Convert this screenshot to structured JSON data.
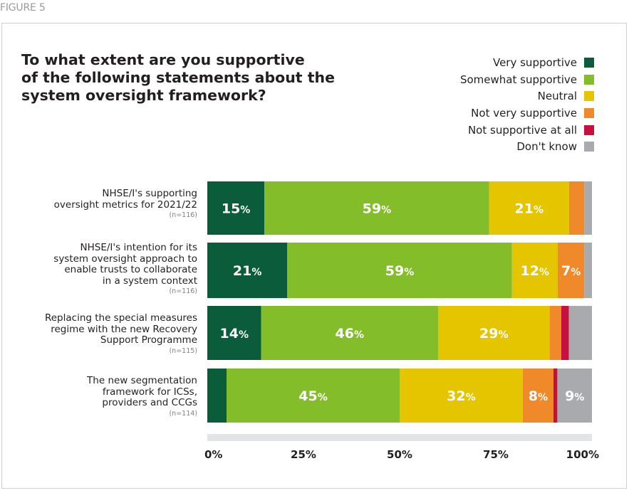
{
  "figure_label": "FIGURE 5",
  "chart_data": {
    "type": "bar",
    "orientation": "horizontal",
    "stacked": true,
    "title": "To what extent are you supportive of the following statements about the system oversight framework?",
    "title_lines": [
      "To what extent are you supportive",
      "of the following statements about the",
      "system oversight framework?"
    ],
    "legend_position": "top-right",
    "xlim": [
      0,
      100
    ],
    "x_ticks": [
      "0%",
      "25%",
      "50%",
      "75%",
      "100%"
    ],
    "series": [
      {
        "name": "Very supportive",
        "color": "#0a5c3a"
      },
      {
        "name": "Somewhat supportive",
        "color": "#84bd2a"
      },
      {
        "name": "Neutral",
        "color": "#e5c400"
      },
      {
        "name": "Not very supportive",
        "color": "#f0892a"
      },
      {
        "name": "Not supportive at all",
        "color": "#c8103e"
      },
      {
        "name": "Don't know",
        "color": "#a8aaad"
      }
    ],
    "categories": [
      {
        "lines": [
          "NHSE/I's supporting",
          "oversight metrics for 2021/22"
        ],
        "n": "(n=116)",
        "values": [
          15,
          59,
          21,
          4,
          0,
          2
        ],
        "labels": [
          "15%",
          "59%",
          "21%",
          "",
          "",
          ""
        ]
      },
      {
        "lines": [
          "NHSE/I's intention for its",
          "system oversight approach to",
          "enable trusts to collaborate",
          "in a system context"
        ],
        "n": "(n=116)",
        "values": [
          21,
          59,
          12,
          7,
          0,
          2
        ],
        "labels": [
          "21%",
          "59%",
          "12%",
          "7%",
          "",
          ""
        ]
      },
      {
        "lines": [
          "Replacing the special measures",
          "regime with the new Recovery",
          "Support Programme"
        ],
        "n": "(n=115)",
        "values": [
          14,
          46,
          29,
          3,
          2,
          6
        ],
        "labels": [
          "14%",
          "46%",
          "29%",
          "",
          "",
          ""
        ]
      },
      {
        "lines": [
          "The new segmentation",
          "framework for ICSs,",
          "providers and CCGs"
        ],
        "n": "(n=114)",
        "values": [
          5,
          45,
          32,
          8,
          1,
          9
        ],
        "labels": [
          "",
          "45%",
          "32%",
          "8%",
          "",
          "9%"
        ]
      }
    ]
  }
}
